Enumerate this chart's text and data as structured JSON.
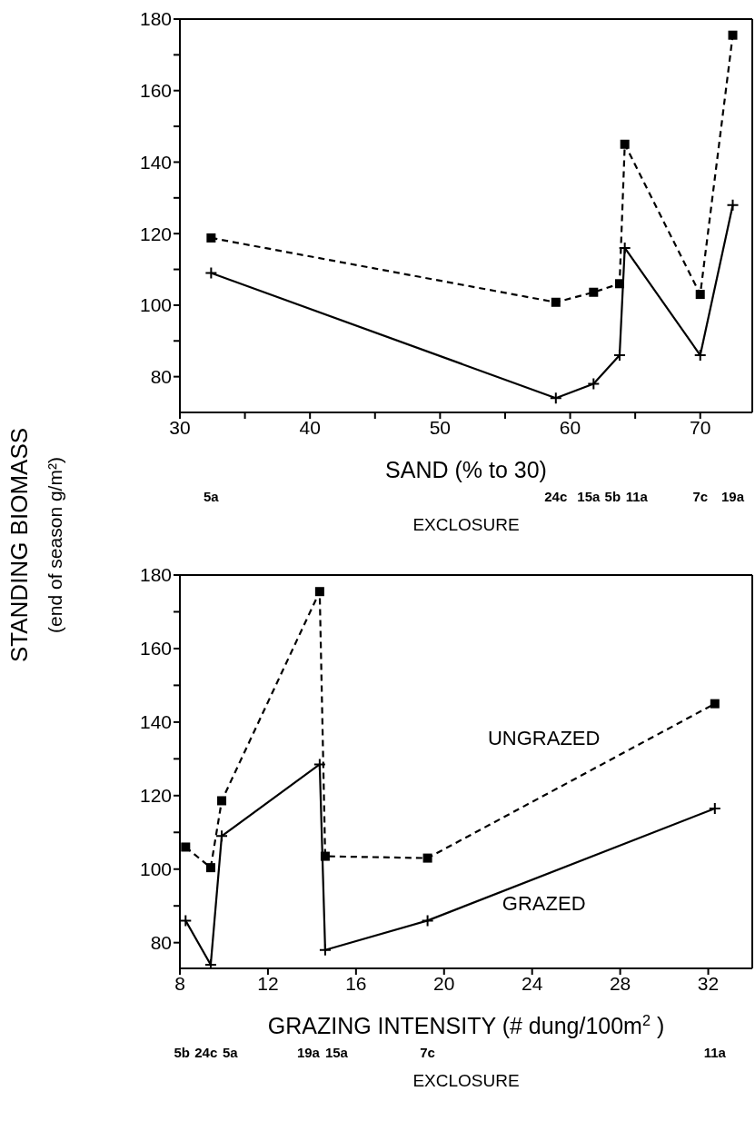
{
  "chart_data": [
    {
      "type": "line",
      "ylabel": "STANDING BIOMASS\n(end of season g/m²)",
      "xlabel": "SAND (% to 30)",
      "annotations": [
        "5a",
        "24c",
        "15a",
        "5b",
        "11a",
        "7c",
        "19a",
        "EXCLOSURE"
      ],
      "xlim": [
        30,
        74
      ],
      "xticks": [
        30,
        {
          "value": 35,
          "label": null
        },
        40,
        {
          "value": 45,
          "label": null
        },
        50,
        {
          "value": 55,
          "label": null
        },
        60,
        {
          "value": 65,
          "label": null
        },
        70
      ],
      "ylim": [
        70,
        180
      ],
      "yticks": [
        80,
        {
          "value": 90,
          "label": null
        },
        100,
        {
          "value": 110,
          "label": null
        },
        120,
        {
          "value": 130,
          "label": null
        },
        140,
        {
          "value": 150,
          "label": null
        },
        160,
        {
          "value": 170,
          "label": null
        },
        180
      ],
      "x": [
        32.4,
        58.9,
        61.8,
        63.8,
        64.2,
        70,
        72.5
      ],
      "series": [
        {
          "color": "#000000",
          "marker": "square",
          "line_style": "dashed",
          "values": [
            118.8,
            100.8,
            103.6,
            106,
            145,
            103,
            175.5
          ]
        },
        {
          "color": "#000000",
          "marker": "cross",
          "line_style": "solid",
          "values": [
            109,
            74,
            78,
            86,
            116,
            86,
            128
          ]
        }
      ]
    },
    {
      "type": "line",
      "xlabel": "GRAZING INTENSITY (# dung/100m$^{2}$ )",
      "annotations": [
        "5b",
        "24c",
        "5a",
        "19a",
        "15a",
        "7c",
        "11a",
        "EXCLOSURE"
      ],
      "xlim": [
        8,
        34
      ],
      "xticks": [
        8,
        12,
        16,
        20,
        24,
        28,
        32
      ],
      "ylim": [
        73,
        180
      ],
      "yticks": [
        80,
        {
          "value": 90,
          "label": null
        },
        100,
        {
          "value": 110,
          "label": null
        },
        120,
        {
          "value": 130,
          "label": null
        },
        140,
        {
          "value": 150,
          "label": null
        },
        160,
        {
          "value": 170,
          "label": null
        },
        180
      ],
      "x": [
        8.26,
        9.4,
        9.9,
        14.35,
        14.6,
        19.25,
        32.3
      ],
      "series": [
        {
          "name": "UNGRAZED",
          "color": "#000000",
          "marker": "square",
          "line_style": "dashed",
          "values": [
            106,
            100.4,
            118.6,
            175.5,
            103.5,
            103,
            145
          ]
        },
        {
          "name": "GRAZED",
          "color": "#000000",
          "marker": "cross",
          "line_style": "solid",
          "values": [
            86,
            74,
            109,
            128.5,
            78,
            86,
            116.5
          ]
        }
      ]
    }
  ]
}
